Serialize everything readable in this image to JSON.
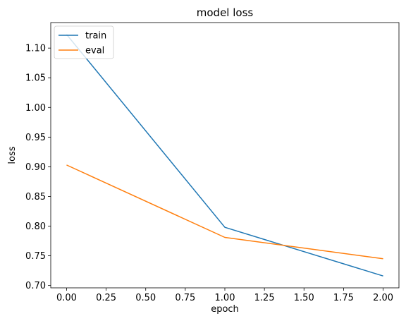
{
  "chart_data": {
    "type": "line",
    "title": "model loss",
    "xlabel": "epoch",
    "ylabel": "loss",
    "x": [
      0,
      1,
      2
    ],
    "xlim": [
      -0.1,
      2.1
    ],
    "ylim": [
      0.696,
      1.143
    ],
    "xticks": [
      0.0,
      0.25,
      0.5,
      0.75,
      1.0,
      1.25,
      1.5,
      1.75,
      2.0
    ],
    "xtick_labels": [
      "0.00",
      "0.25",
      "0.50",
      "0.75",
      "1.00",
      "1.25",
      "1.50",
      "1.75",
      "2.00"
    ],
    "yticks": [
      0.7,
      0.75,
      0.8,
      0.85,
      0.9,
      0.95,
      1.0,
      1.05,
      1.1
    ],
    "ytick_labels": [
      "0.70",
      "0.75",
      "0.80",
      "0.85",
      "0.90",
      "0.95",
      "1.00",
      "1.05",
      "1.10"
    ],
    "grid": false,
    "legend_position": "upper-left",
    "series": [
      {
        "name": "train",
        "color": "#1f77b4",
        "values": [
          1.123,
          0.798,
          0.716
        ]
      },
      {
        "name": "eval",
        "color": "#ff7f0e",
        "values": [
          0.903,
          0.781,
          0.745
        ]
      }
    ]
  }
}
